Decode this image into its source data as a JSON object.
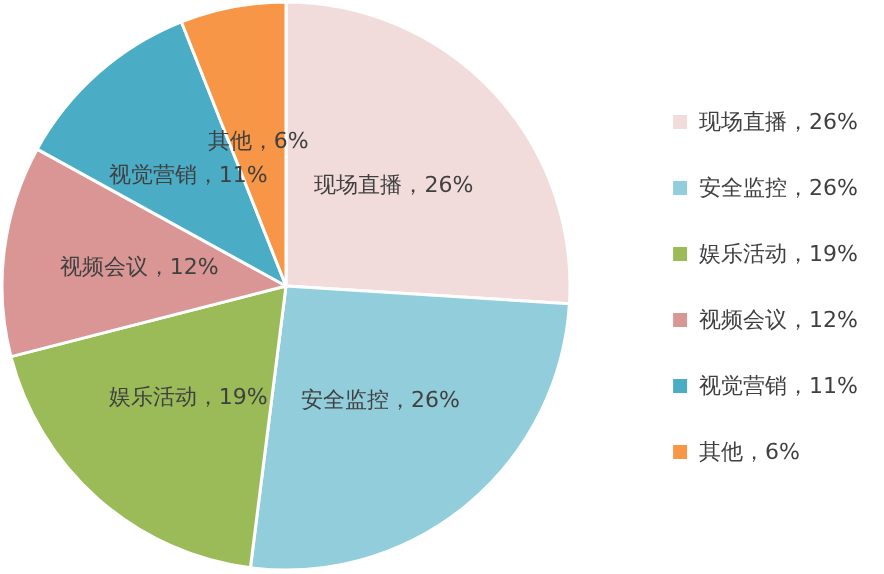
{
  "chart_data": {
    "type": "pie",
    "categories": [
      "现场直播",
      "安全监控",
      "娱乐活动",
      "视频会议",
      "视觉营销",
      "其他"
    ],
    "values": [
      26,
      26,
      19,
      12,
      11,
      6
    ],
    "value_labels": [
      "26%",
      "26%",
      "19%",
      "12%",
      "11%",
      "6%"
    ],
    "colors": [
      "#f2dcdb",
      "#92cddc",
      "#9bbb59",
      "#d99694",
      "#4bacc6",
      "#f79646"
    ],
    "legend": "right"
  }
}
